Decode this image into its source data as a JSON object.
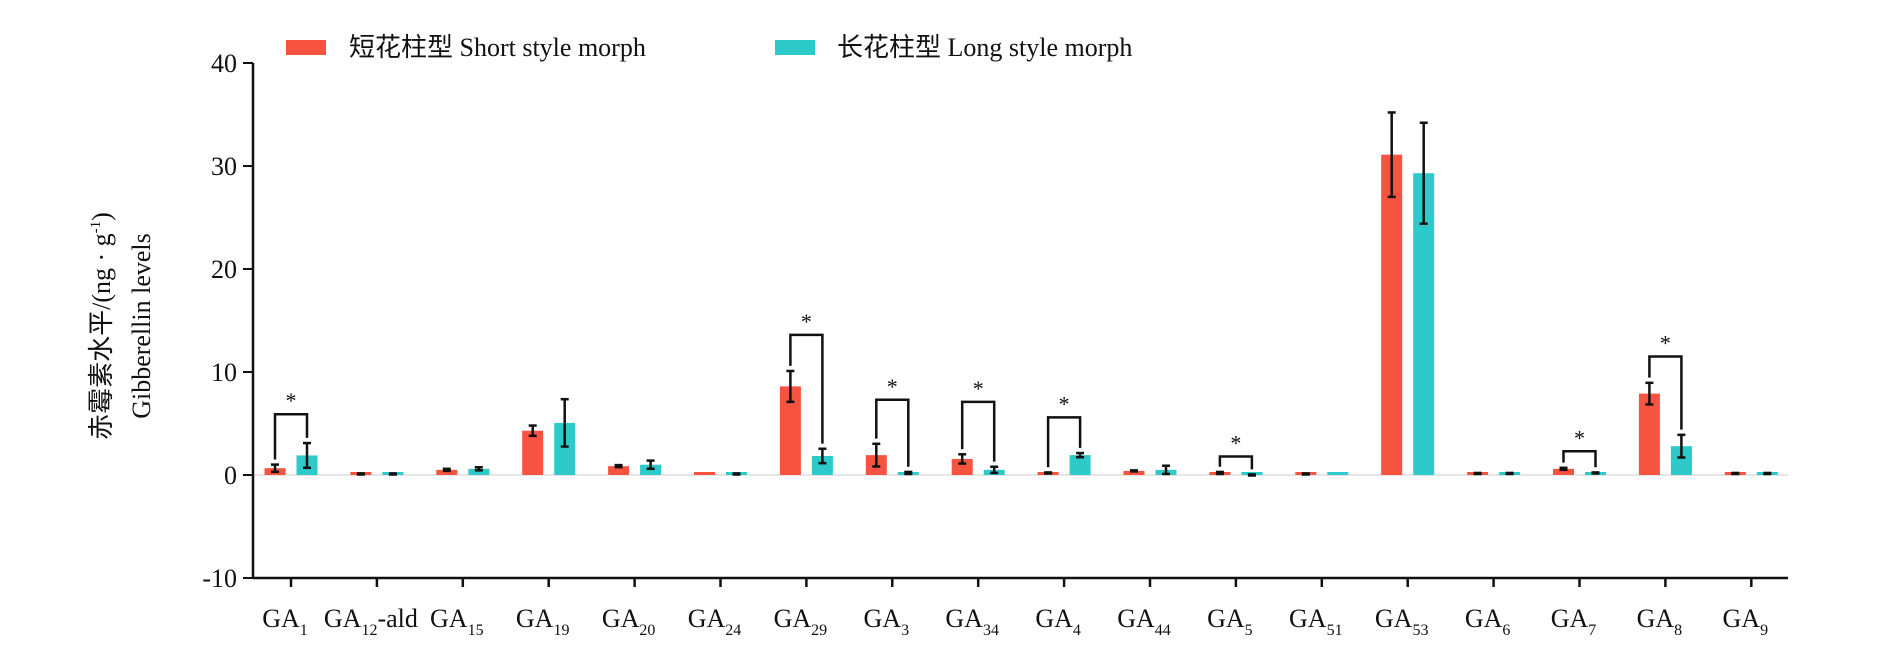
{
  "chart_data": {
    "type": "bar",
    "title": "",
    "ylabel_cn": "赤霉素水平/(ng · g",
    "ylabel_sup": "-1",
    "ylabel_close": ")",
    "ylabel_en": "Gibberellin levels",
    "xlabel": "",
    "ylim": [
      -10,
      40
    ],
    "yticks": [
      -10,
      0,
      10,
      20,
      30,
      40
    ],
    "legend_position": "top",
    "colors": {
      "short": "#f65340",
      "long": "#2ec9c9"
    },
    "categories": [
      {
        "base": "GA",
        "sub": "1",
        "suffix": ""
      },
      {
        "base": "GA",
        "sub": "12",
        "suffix": "-ald"
      },
      {
        "base": "GA",
        "sub": "15",
        "suffix": ""
      },
      {
        "base": "GA",
        "sub": "19",
        "suffix": ""
      },
      {
        "base": "GA",
        "sub": "20",
        "suffix": ""
      },
      {
        "base": "GA",
        "sub": "24",
        "suffix": ""
      },
      {
        "base": "GA",
        "sub": "29",
        "suffix": ""
      },
      {
        "base": "GA",
        "sub": "3",
        "suffix": ""
      },
      {
        "base": "GA",
        "sub": "34",
        "suffix": ""
      },
      {
        "base": "GA",
        "sub": "4",
        "suffix": ""
      },
      {
        "base": "GA",
        "sub": "44",
        "suffix": ""
      },
      {
        "base": "GA",
        "sub": "5",
        "suffix": ""
      },
      {
        "base": "GA",
        "sub": "51",
        "suffix": ""
      },
      {
        "base": "GA",
        "sub": "53",
        "suffix": ""
      },
      {
        "base": "GA",
        "sub": "6",
        "suffix": ""
      },
      {
        "base": "GA",
        "sub": "7",
        "suffix": ""
      },
      {
        "base": "GA",
        "sub": "8",
        "suffix": ""
      },
      {
        "base": "GA",
        "sub": "9",
        "suffix": ""
      }
    ],
    "series": [
      {
        "name": "短花柱型 Short style morph",
        "key": "short",
        "values": [
          0.66,
          0.1,
          0.5,
          4.3,
          0.86,
          0.1,
          8.6,
          1.93,
          1.56,
          0.2,
          0.4,
          0.2,
          0.1,
          31.1,
          0.15,
          0.6,
          7.9,
          0.15
        ],
        "errors": [
          0.35,
          0.05,
          0.1,
          0.5,
          0.1,
          0,
          1.5,
          1.1,
          0.45,
          0.05,
          0.05,
          0.1,
          0.05,
          4.1,
          0.05,
          0.1,
          1.05,
          0.05
        ]
      },
      {
        "name": "长花柱型 Long style morph",
        "key": "long",
        "values": [
          1.9,
          0.1,
          0.6,
          5.06,
          1.0,
          0.1,
          1.85,
          0.2,
          0.5,
          1.93,
          0.5,
          0.0,
          0.1,
          29.3,
          0.15,
          0.2,
          2.8,
          0.15
        ],
        "errors": [
          1.2,
          0.05,
          0.15,
          2.3,
          0.4,
          0.05,
          0.7,
          0.1,
          0.3,
          0.2,
          0.4,
          0.05,
          0,
          4.9,
          0.05,
          0.05,
          1.1,
          0.05
        ]
      }
    ],
    "significance": [
      {
        "index": 0,
        "label": "*",
        "level": 5.9
      },
      {
        "index": 6,
        "label": "*",
        "level": 13.6
      },
      {
        "index": 7,
        "label": "*",
        "level": 7.3
      },
      {
        "index": 8,
        "label": "*",
        "level": 7.1
      },
      {
        "index": 9,
        "label": "*",
        "level": 5.6
      },
      {
        "index": 11,
        "label": "*",
        "level": 1.8
      },
      {
        "index": 15,
        "label": "*",
        "level": 2.3
      },
      {
        "index": 16,
        "label": "*",
        "level": 11.5
      }
    ]
  }
}
